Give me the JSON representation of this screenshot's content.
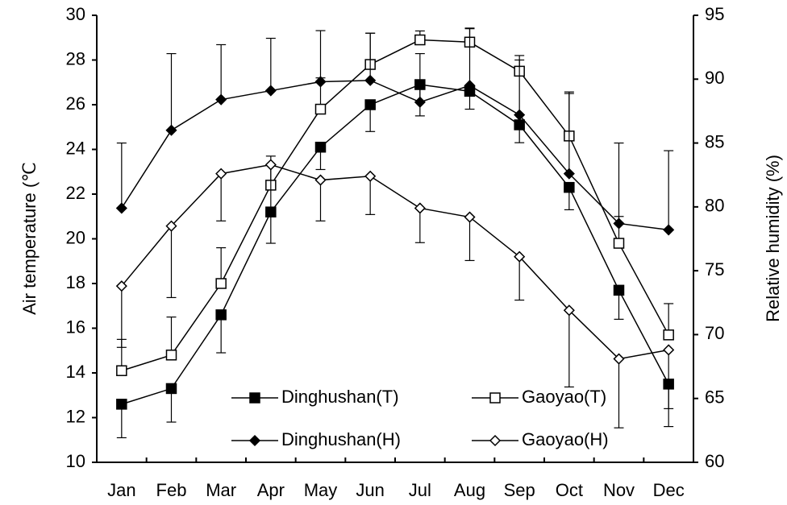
{
  "chart_data": {
    "type": "line",
    "categories": [
      "Jan",
      "Feb",
      "Mar",
      "Apr",
      "May",
      "Jun",
      "Jul",
      "Aug",
      "Sep",
      "Oct",
      "Nov",
      "Dec"
    ],
    "y_label": "Air temperature (℃",
    "y2_label": "Relative humidity (%)",
    "ylim": [
      10,
      30
    ],
    "yticks": [
      10,
      12,
      14,
      16,
      18,
      20,
      22,
      24,
      26,
      28,
      30
    ],
    "y2lim": [
      60,
      95
    ],
    "y2ticks": [
      60,
      65,
      70,
      75,
      80,
      85,
      90,
      95
    ],
    "series": [
      {
        "name": "Dinghushan(T)",
        "color": "#000000",
        "marker": "square",
        "filled": true,
        "error_direction": "down",
        "values": [
          12.6,
          13.3,
          16.6,
          21.2,
          24.1,
          26.0,
          26.9,
          26.6,
          25.1,
          22.3,
          17.7,
          13.5
        ],
        "errors": [
          1.5,
          1.5,
          1.7,
          1.4,
          1.0,
          1.2,
          1.4,
          0.8,
          0.8,
          1.0,
          1.3,
          1.9
        ]
      },
      {
        "name": "Gaoyao(T)",
        "color": "#000000",
        "marker": "square",
        "filled": false,
        "error_direction": "up",
        "values": [
          14.1,
          14.8,
          18.0,
          22.4,
          25.8,
          27.8,
          28.9,
          28.8,
          27.5,
          24.6,
          19.8,
          15.7
        ],
        "errors": [
          1.4,
          1.7,
          1.6,
          1.3,
          1.4,
          1.4,
          0.4,
          0.6,
          0.7,
          1.9,
          1.2,
          1.4
        ]
      },
      {
        "name": "Dinghushan(H)",
        "color": "#000000",
        "marker": "diamond",
        "filled": true,
        "error_direction": "up",
        "axis": "y2",
        "values": [
          79.9,
          86.0,
          88.4,
          89.1,
          89.8,
          89.9,
          88.2,
          89.5,
          87.2,
          82.6,
          78.7,
          78.2
        ],
        "errors": [
          5.1,
          6.0,
          4.3,
          4.1,
          4.0,
          3.7,
          3.8,
          4.5,
          4.3,
          6.4,
          6.3,
          6.2
        ]
      },
      {
        "name": "Gaoyao(H)",
        "color": "#000000",
        "marker": "diamond",
        "filled": false,
        "error_direction": "down",
        "axis": "y2",
        "values": [
          73.8,
          78.5,
          82.6,
          83.3,
          82.1,
          82.4,
          79.9,
          79.2,
          76.1,
          71.9,
          68.1,
          68.8
        ],
        "errors": [
          4.8,
          5.6,
          3.7,
          4.0,
          3.2,
          3.0,
          2.7,
          3.4,
          3.4,
          6.0,
          5.4,
          4.6
        ]
      }
    ]
  }
}
